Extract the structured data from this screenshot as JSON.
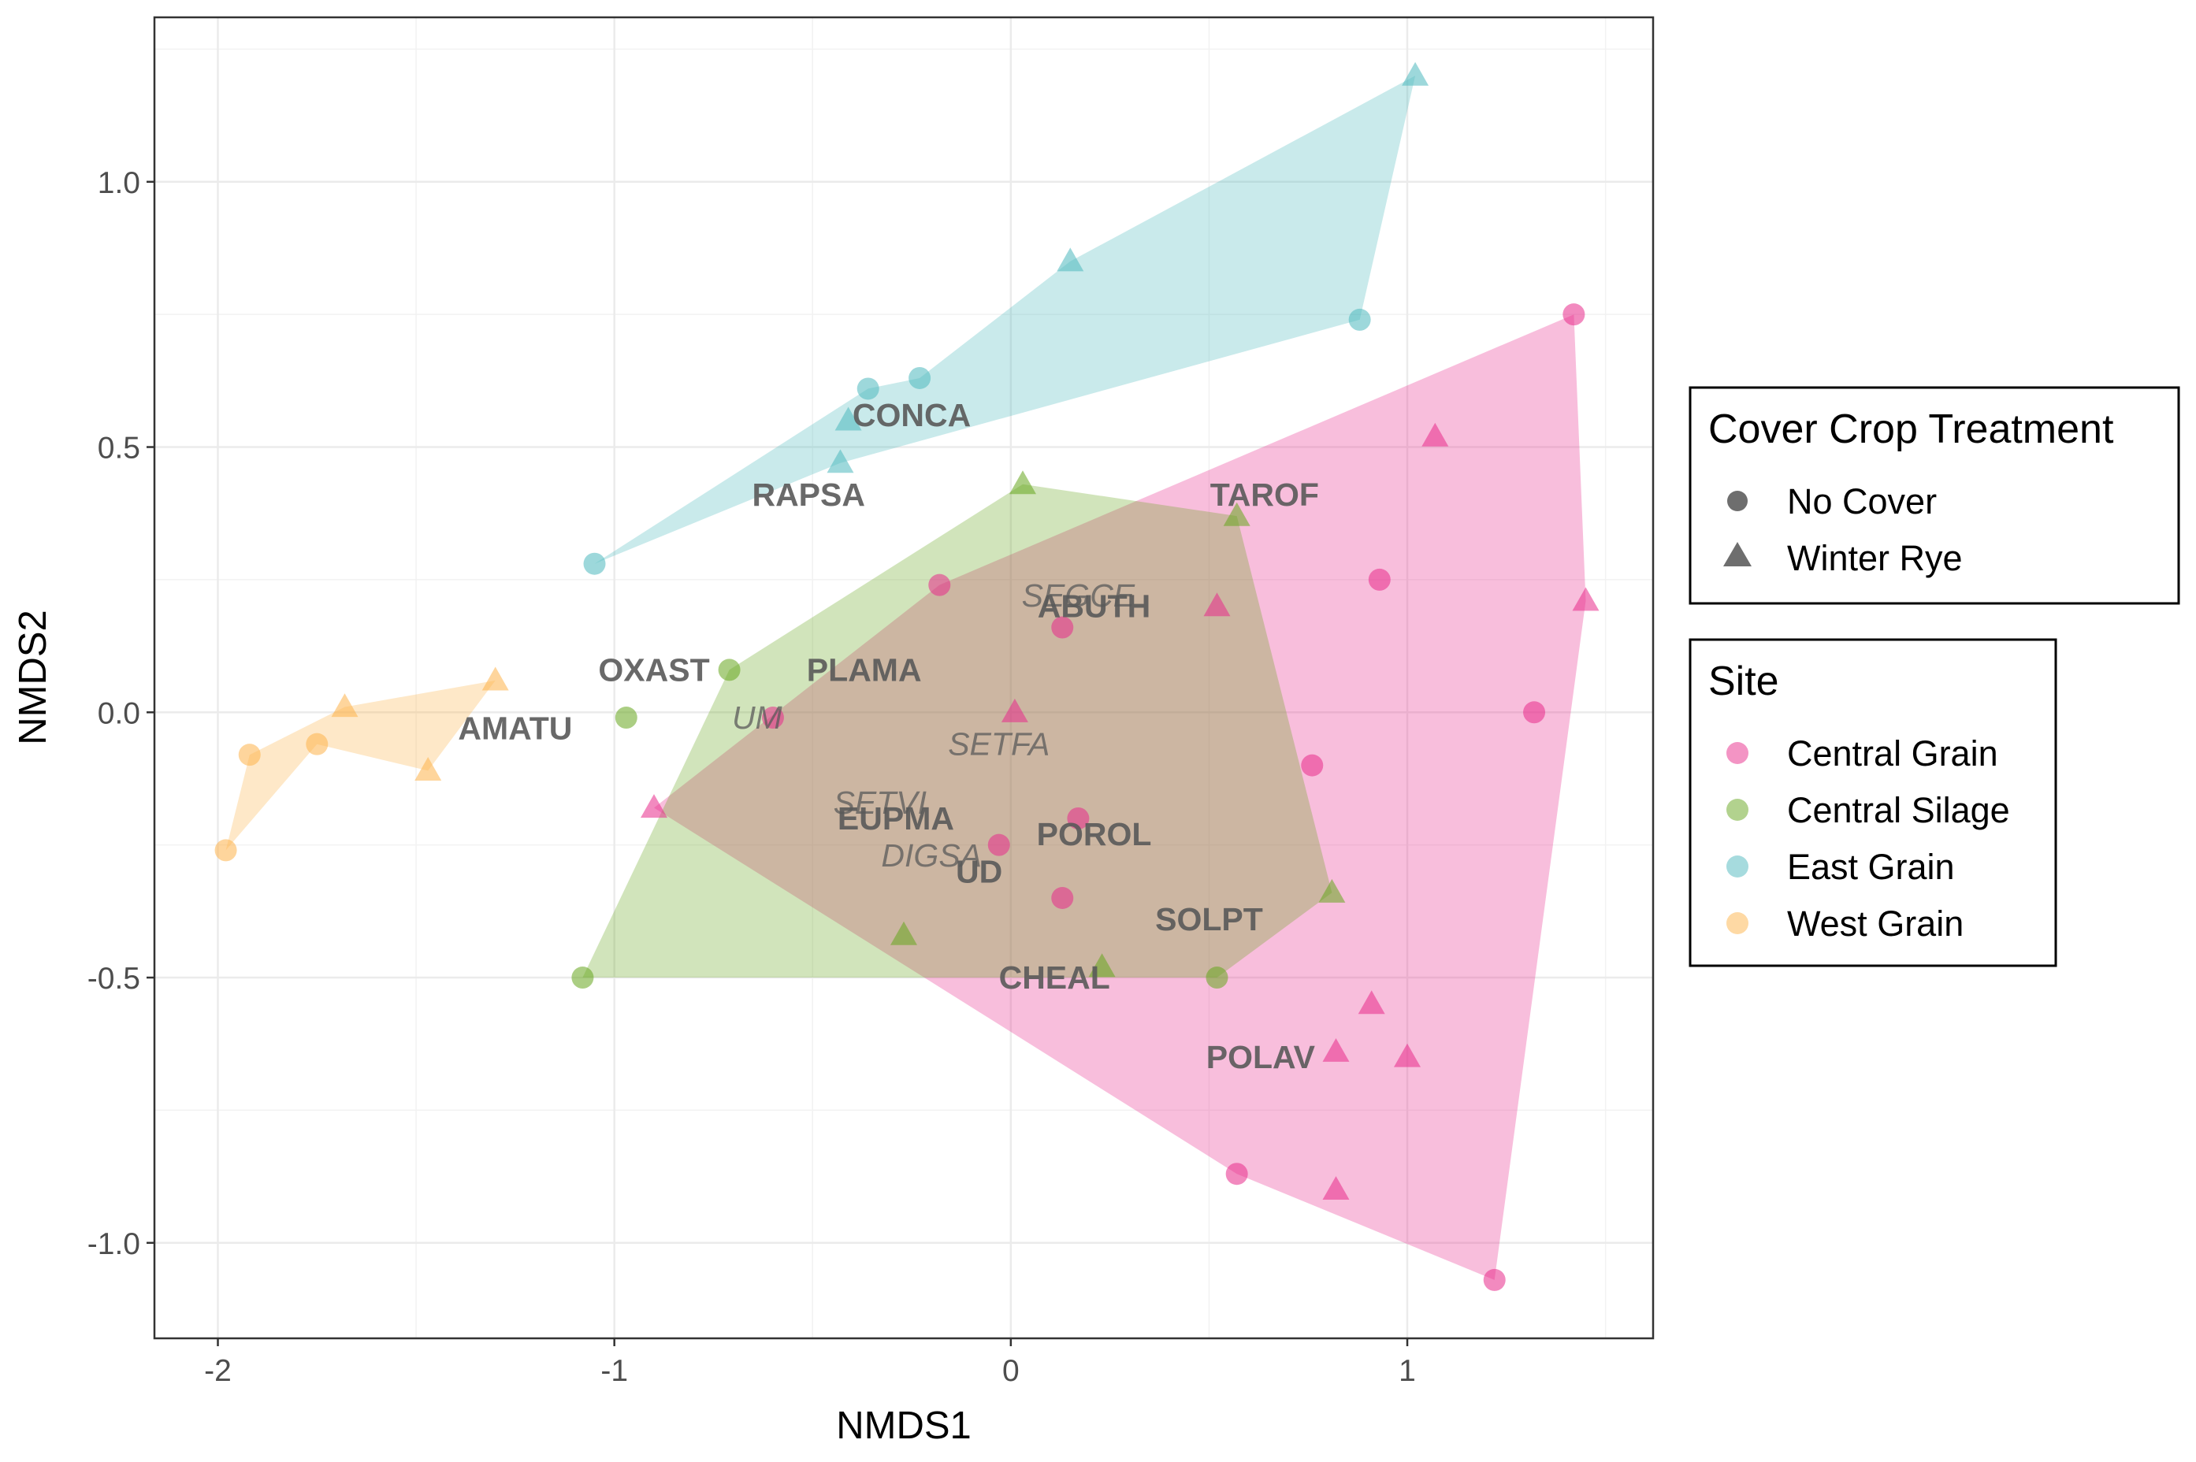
{
  "chart_data": {
    "type": "scatter",
    "xlabel": "NMDS1",
    "ylabel": "NMDS2",
    "xlim": [
      -2.16,
      1.62
    ],
    "ylim": [
      -1.18,
      1.31
    ],
    "x_ticks": [
      -2,
      -1,
      0,
      1
    ],
    "x_tick_labels": [
      "-2",
      "-1",
      "0",
      "1"
    ],
    "y_ticks": [
      -1.0,
      -0.5,
      0.0,
      0.5,
      1.0
    ],
    "y_tick_labels": [
      "-1.0",
      "-0.5",
      "0.0",
      "0.5",
      "1.0"
    ],
    "grid": true,
    "legend_placement": "right",
    "shape_legend": {
      "title": "Cover Crop Treatment",
      "items": [
        {
          "label": "No Cover",
          "shape": "circle"
        },
        {
          "label": "Winter Rye",
          "shape": "triangle"
        }
      ]
    },
    "color_legend": {
      "title": "Site",
      "items": [
        {
          "label": "Central Grain",
          "color": "#E7298A"
        },
        {
          "label": "Central Silage",
          "color": "#66A61E"
        },
        {
          "label": "East Grain",
          "color": "#4DB8BE"
        },
        {
          "label": "West Grain",
          "color": "#FDB34A"
        }
      ]
    },
    "series": [
      {
        "site": "Central Grain",
        "color": "#E7298A",
        "hull": [
          [
            -0.18,
            0.24
          ],
          [
            1.42,
            0.75
          ],
          [
            1.45,
            0.21
          ],
          [
            1.22,
            -1.07
          ],
          [
            0.57,
            -0.87
          ],
          [
            -0.9,
            -0.18
          ]
        ],
        "points": [
          {
            "x": -0.18,
            "y": 0.24,
            "shape": "circle"
          },
          {
            "x": 1.42,
            "y": 0.75,
            "shape": "circle"
          },
          {
            "x": 0.93,
            "y": 0.25,
            "shape": "circle"
          },
          {
            "x": 1.32,
            "y": 0.0,
            "shape": "circle"
          },
          {
            "x": 0.76,
            "y": -0.1,
            "shape": "circle"
          },
          {
            "x": 0.13,
            "y": 0.16,
            "shape": "circle"
          },
          {
            "x": -0.6,
            "y": -0.01,
            "shape": "circle"
          },
          {
            "x": 0.17,
            "y": -0.2,
            "shape": "circle"
          },
          {
            "x": -0.03,
            "y": -0.25,
            "shape": "circle"
          },
          {
            "x": 0.13,
            "y": -0.35,
            "shape": "circle"
          },
          {
            "x": 0.57,
            "y": -0.87,
            "shape": "circle"
          },
          {
            "x": 1.22,
            "y": -1.07,
            "shape": "circle"
          },
          {
            "x": 1.07,
            "y": 0.52,
            "shape": "triangle"
          },
          {
            "x": 1.45,
            "y": 0.21,
            "shape": "triangle"
          },
          {
            "x": 0.52,
            "y": 0.2,
            "shape": "triangle"
          },
          {
            "x": 0.01,
            "y": 0.0,
            "shape": "triangle"
          },
          {
            "x": -0.9,
            "y": -0.18,
            "shape": "triangle"
          },
          {
            "x": 0.91,
            "y": -0.55,
            "shape": "triangle"
          },
          {
            "x": 0.82,
            "y": -0.64,
            "shape": "triangle"
          },
          {
            "x": 1.0,
            "y": -0.65,
            "shape": "triangle"
          },
          {
            "x": 0.82,
            "y": -0.9,
            "shape": "triangle"
          }
        ]
      },
      {
        "site": "Central Silage",
        "color": "#66A61E",
        "hull": [
          [
            -0.71,
            0.08
          ],
          [
            0.03,
            0.43
          ],
          [
            0.57,
            0.37
          ],
          [
            0.81,
            -0.34
          ],
          [
            0.52,
            -0.5
          ],
          [
            -1.08,
            -0.5
          ]
        ],
        "points": [
          {
            "x": -0.71,
            "y": 0.08,
            "shape": "circle"
          },
          {
            "x": -0.97,
            "y": -0.01,
            "shape": "circle"
          },
          {
            "x": -1.08,
            "y": -0.5,
            "shape": "circle"
          },
          {
            "x": 0.52,
            "y": -0.5,
            "shape": "circle"
          },
          {
            "x": 0.03,
            "y": 0.43,
            "shape": "triangle"
          },
          {
            "x": 0.57,
            "y": 0.37,
            "shape": "triangle"
          },
          {
            "x": 0.81,
            "y": -0.34,
            "shape": "triangle"
          },
          {
            "x": -0.27,
            "y": -0.42,
            "shape": "triangle"
          },
          {
            "x": 0.23,
            "y": -0.48,
            "shape": "triangle"
          }
        ]
      },
      {
        "site": "East Grain",
        "color": "#4DB8BE",
        "hull": [
          [
            -1.05,
            0.28
          ],
          [
            -0.36,
            0.61
          ],
          [
            -0.23,
            0.63
          ],
          [
            0.15,
            0.85
          ],
          [
            1.02,
            1.2
          ],
          [
            0.88,
            0.74
          ],
          [
            -0.43,
            0.47
          ]
        ],
        "points": [
          {
            "x": -1.05,
            "y": 0.28,
            "shape": "circle"
          },
          {
            "x": -0.36,
            "y": 0.61,
            "shape": "circle"
          },
          {
            "x": -0.23,
            "y": 0.63,
            "shape": "circle"
          },
          {
            "x": 0.88,
            "y": 0.74,
            "shape": "circle"
          },
          {
            "x": 1.02,
            "y": 1.2,
            "shape": "triangle"
          },
          {
            "x": 0.15,
            "y": 0.85,
            "shape": "triangle"
          },
          {
            "x": -0.41,
            "y": 0.55,
            "shape": "triangle"
          },
          {
            "x": -0.43,
            "y": 0.47,
            "shape": "triangle"
          }
        ]
      },
      {
        "site": "West Grain",
        "color": "#FDB34A",
        "hull": [
          [
            -1.98,
            -0.26
          ],
          [
            -1.92,
            -0.08
          ],
          [
            -1.68,
            0.01
          ],
          [
            -1.3,
            0.06
          ],
          [
            -1.47,
            -0.11
          ],
          [
            -1.75,
            -0.06
          ]
        ],
        "points": [
          {
            "x": -1.92,
            "y": -0.08,
            "shape": "circle"
          },
          {
            "x": -1.75,
            "y": -0.06,
            "shape": "circle"
          },
          {
            "x": -1.98,
            "y": -0.26,
            "shape": "circle"
          },
          {
            "x": -1.68,
            "y": 0.01,
            "shape": "triangle"
          },
          {
            "x": -1.3,
            "y": 0.06,
            "shape": "triangle"
          },
          {
            "x": -1.47,
            "y": -0.11,
            "shape": "triangle"
          }
        ]
      }
    ],
    "species_labels": [
      {
        "text": "CONCA",
        "x": -0.25,
        "y": 0.56,
        "style": "bold"
      },
      {
        "text": "RAPSA",
        "x": -0.51,
        "y": 0.41,
        "style": "bold"
      },
      {
        "text": "TAROF",
        "x": 0.64,
        "y": 0.41,
        "style": "bold"
      },
      {
        "text": "SEGCE",
        "x": 0.17,
        "y": 0.22,
        "style": "italic"
      },
      {
        "text": "ABUTH",
        "x": 0.21,
        "y": 0.2,
        "style": "bold"
      },
      {
        "text": "OXAST",
        "x": -0.9,
        "y": 0.08,
        "style": "bold"
      },
      {
        "text": "PLAMA",
        "x": -0.37,
        "y": 0.08,
        "style": "bold"
      },
      {
        "text": "AMATU",
        "x": -1.25,
        "y": -0.03,
        "style": "bold"
      },
      {
        "text": "UM",
        "x": -0.64,
        "y": -0.01,
        "style": "italic"
      },
      {
        "text": "SETFA",
        "x": -0.03,
        "y": -0.06,
        "style": "italic"
      },
      {
        "text": "SETVI",
        "x": -0.33,
        "y": -0.17,
        "style": "italic"
      },
      {
        "text": "EUPMA",
        "x": -0.29,
        "y": -0.2,
        "style": "bold"
      },
      {
        "text": "POROL",
        "x": 0.21,
        "y": -0.23,
        "style": "bold"
      },
      {
        "text": "DIGSA",
        "x": -0.2,
        "y": -0.27,
        "style": "italic"
      },
      {
        "text": "UD",
        "x": -0.08,
        "y": -0.3,
        "style": "bold"
      },
      {
        "text": "SOLPT",
        "x": 0.5,
        "y": -0.39,
        "style": "bold"
      },
      {
        "text": "CHEAL",
        "x": 0.11,
        "y": -0.5,
        "style": "bold"
      },
      {
        "text": "POLAV",
        "x": 0.63,
        "y": -0.65,
        "style": "bold"
      }
    ]
  }
}
